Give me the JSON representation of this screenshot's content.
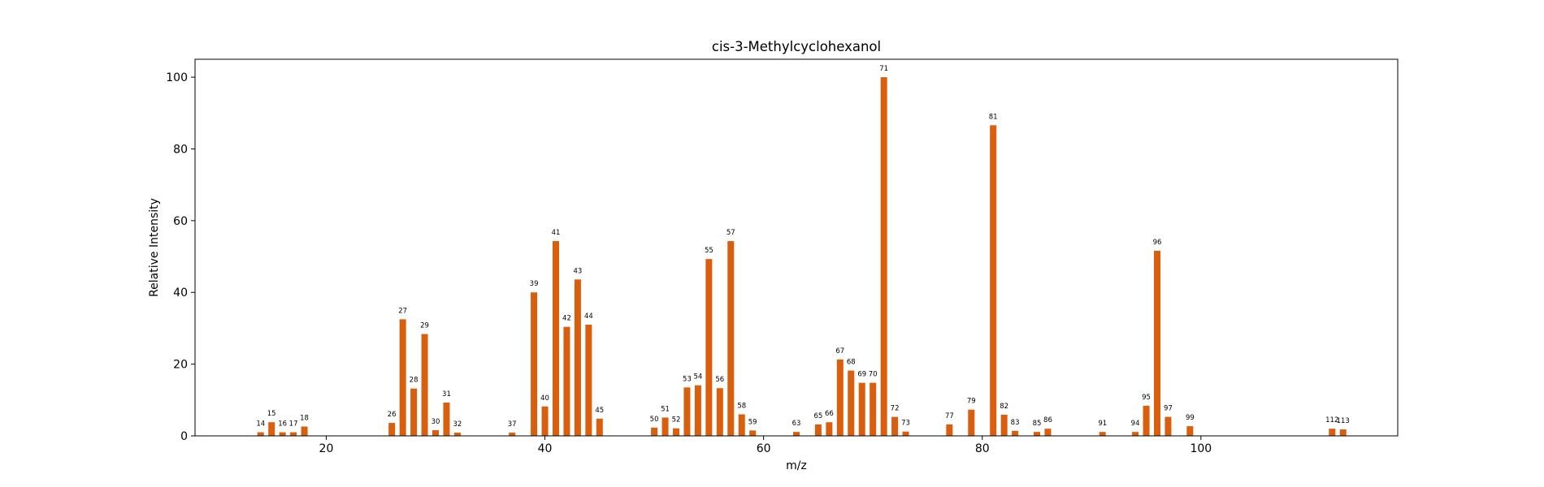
{
  "chart_data": {
    "type": "bar",
    "title": "cis-3-Methylcyclohexanol",
    "xlabel": "m/z",
    "ylabel": "Relative Intensity",
    "xlim": [
      8,
      118
    ],
    "ylim": [
      0,
      105
    ],
    "xticks": [
      20,
      40,
      60,
      80,
      100
    ],
    "yticks": [
      0,
      20,
      40,
      60,
      80,
      100
    ],
    "grid": false,
    "bar_color": "#d95f0e",
    "x": [
      14,
      15,
      16,
      17,
      18,
      26,
      27,
      28,
      29,
      30,
      31,
      32,
      37,
      39,
      40,
      41,
      42,
      43,
      44,
      45,
      50,
      51,
      52,
      53,
      54,
      55,
      56,
      57,
      58,
      59,
      63,
      65,
      66,
      67,
      68,
      69,
      70,
      71,
      72,
      73,
      77,
      79,
      81,
      82,
      83,
      85,
      86,
      91,
      94,
      95,
      96,
      97,
      99,
      112,
      113
    ],
    "values": [
      1.0,
      3.8,
      1.0,
      1.0,
      2.6,
      3.6,
      32.5,
      13.2,
      28.4,
      1.6,
      9.3,
      0.9,
      0.9,
      40.0,
      8.2,
      54.3,
      30.4,
      43.6,
      31.0,
      4.8,
      2.3,
      5.1,
      2.1,
      13.5,
      14.1,
      49.3,
      13.3,
      54.3,
      6.0,
      1.5,
      1.1,
      3.2,
      3.8,
      21.3,
      18.2,
      14.8,
      14.8,
      100.0,
      5.3,
      1.2,
      3.2,
      7.3,
      86.6,
      5.9,
      1.4,
      1.1,
      2.0,
      1.1,
      1.1,
      8.4,
      51.6,
      5.3,
      2.7,
      2.0,
      1.8
    ]
  }
}
